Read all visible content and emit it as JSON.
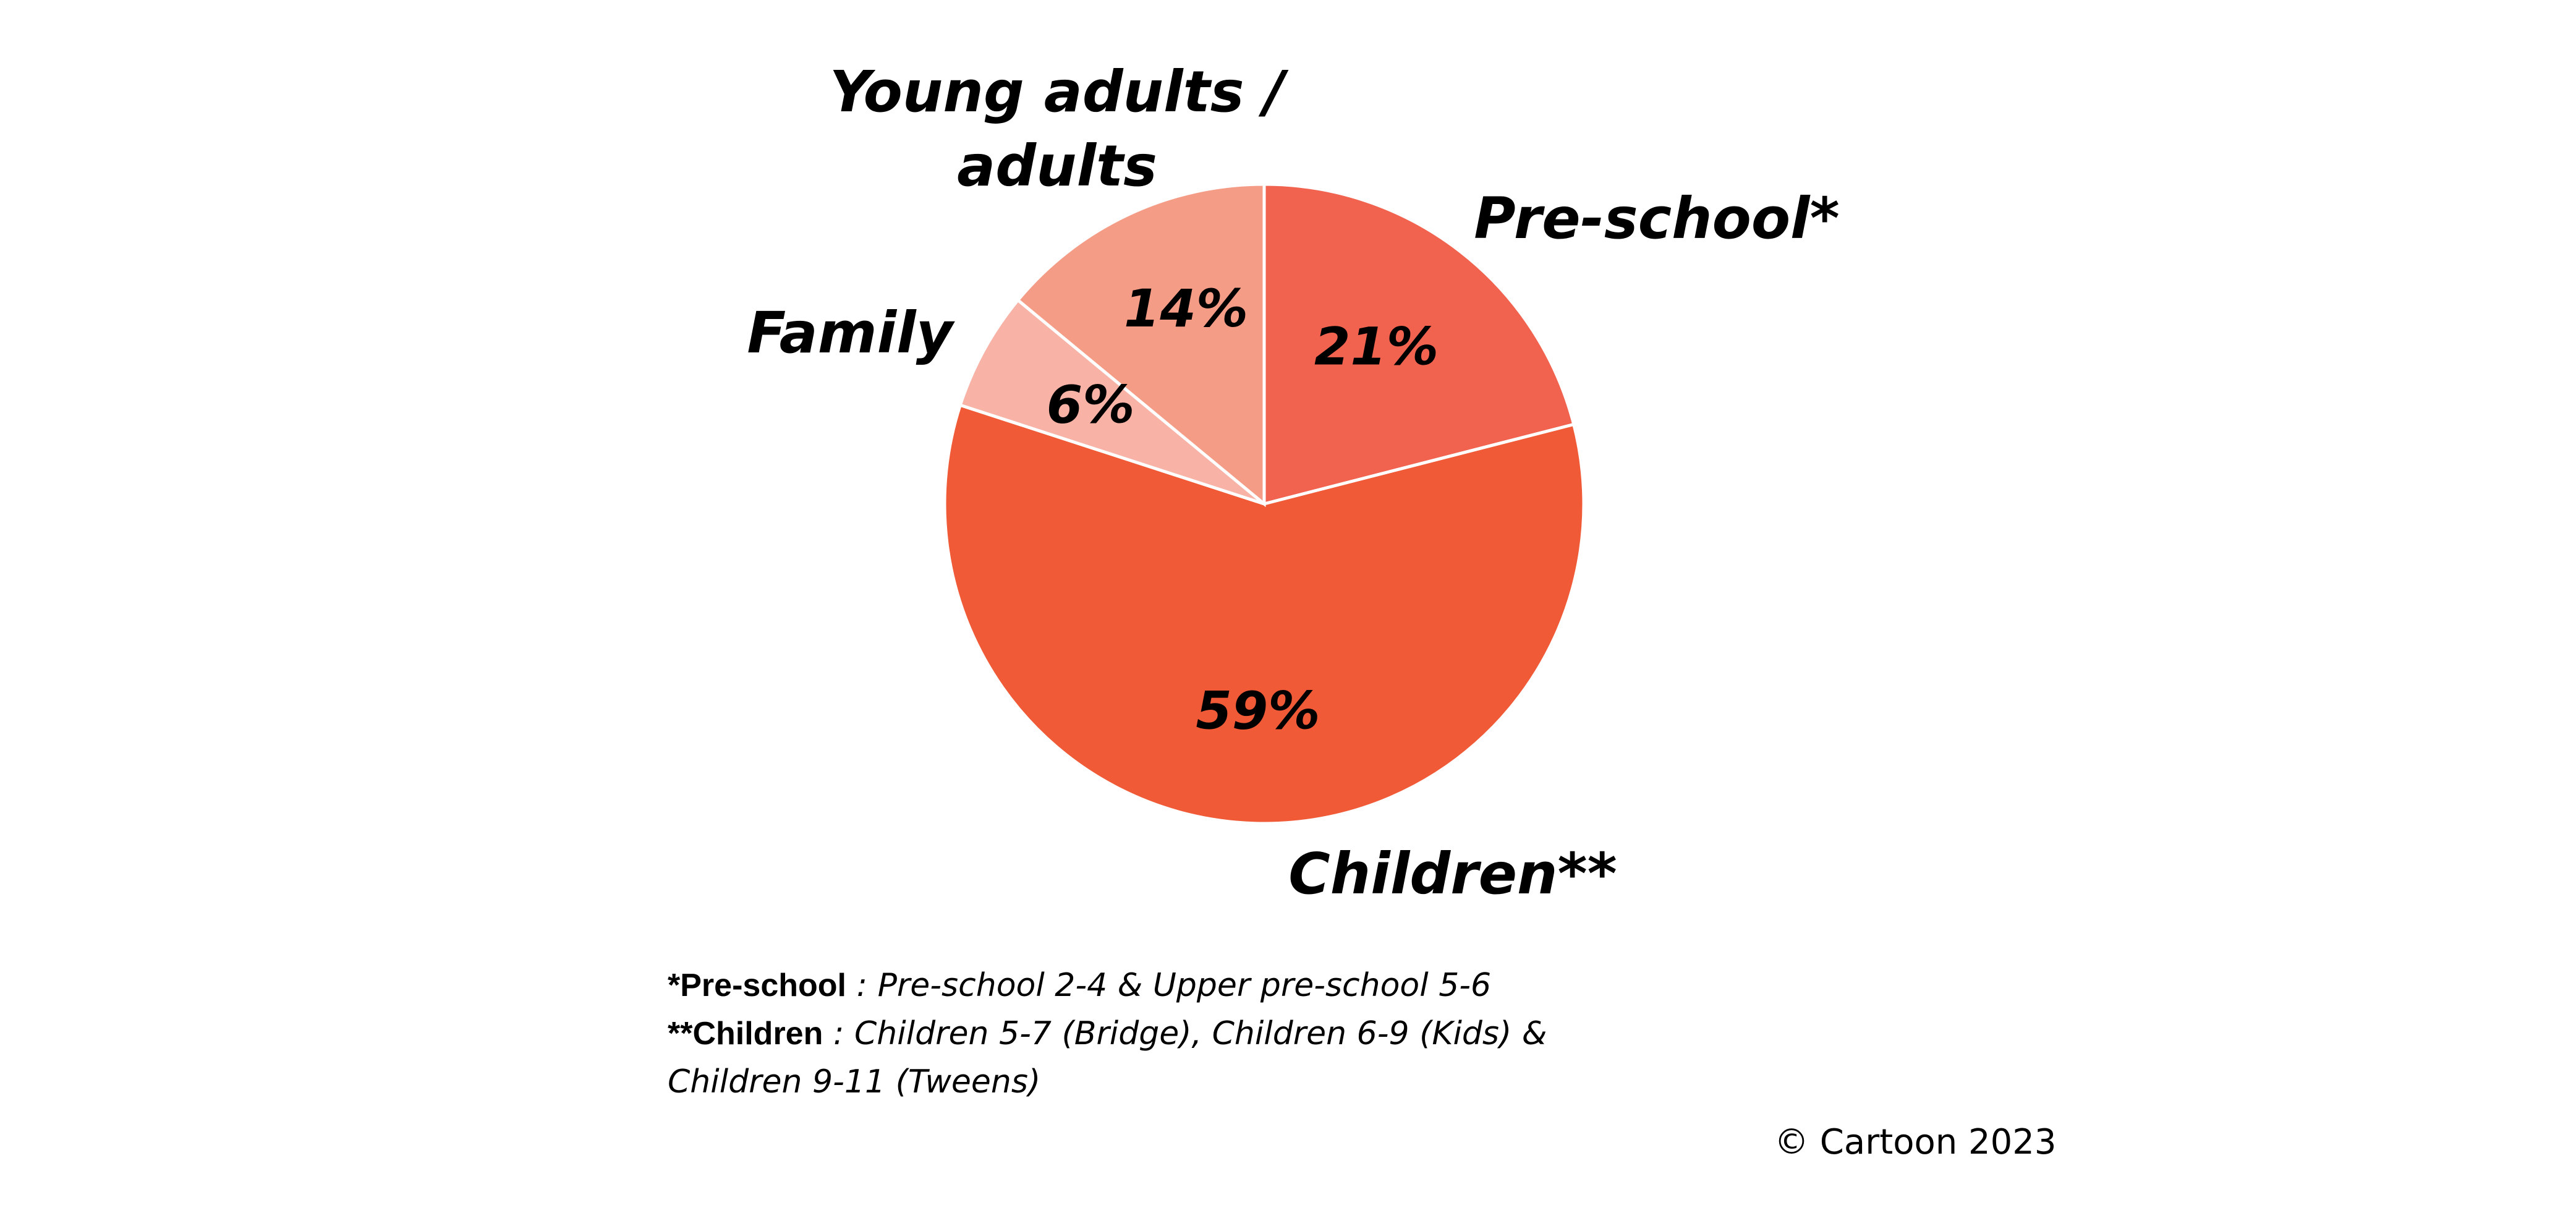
{
  "chart_data": {
    "type": "pie",
    "slices": [
      {
        "label": "Pre-school*",
        "value": 21,
        "value_label": "21%",
        "color": "#f1624f"
      },
      {
        "label": "Children**",
        "value": 59,
        "value_label": "59%",
        "color": "#f05a37"
      },
      {
        "label": "Family",
        "value": 6,
        "value_label": "6%",
        "color": "#f8b2a6"
      },
      {
        "label": "Young adults / adults",
        "label_lines": [
          "Young adults /",
          "adults"
        ],
        "value": 14,
        "value_label": "14%",
        "color": "#f59c86"
      }
    ],
    "start_angle": "12 o'clock",
    "direction": "clockwise"
  },
  "footnotes": {
    "preschool_key": "*Pre-school",
    "preschool_text": " : Pre-school 2-4 & Upper pre-school 5-6",
    "children_key": "**Children",
    "children_text": " : Children 5-7 (Bridge), Children 6-9 (Kids) &",
    "children_text_cont": "Children 9-11 (Tweens)"
  },
  "copyright": "© Cartoon 2023"
}
